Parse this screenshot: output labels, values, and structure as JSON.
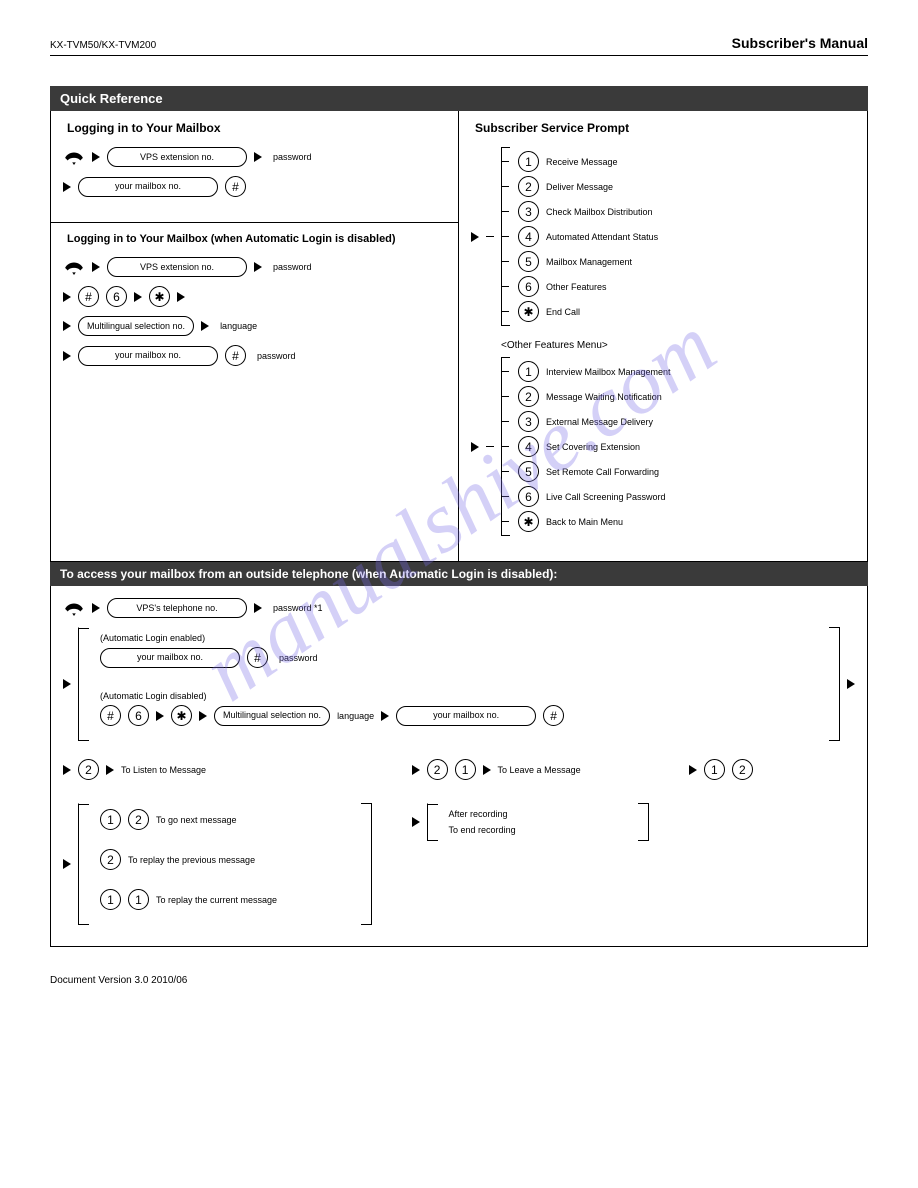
{
  "header": {
    "left": "KX-TVM50/KX-TVM200",
    "right": "Subscriber's Manual"
  },
  "watermark": "manualshive.com",
  "band1": "Quick Reference",
  "band2": "To access your mailbox from an outside telephone (when Automatic Login is disabled):",
  "footer": "Document Version  3.0  2010/06",
  "cells": {
    "c1": {
      "title": "Logging in to Your Mailbox",
      "pill_ext": "VPS extension no.",
      "pill_your": "your mailbox no.",
      "after": "password"
    },
    "c2": {
      "title": "Subscriber Service Prompt",
      "opts": [
        {
          "n": "1",
          "t": "Receive Message"
        },
        {
          "n": "2",
          "t": "Deliver Message"
        },
        {
          "n": "3",
          "t": "Check Mailbox Distribution"
        },
        {
          "n": "4",
          "t": "Automated Attendant Status"
        },
        {
          "n": "5",
          "t": "Mailbox Management"
        },
        {
          "n": "6",
          "t": "Other Features"
        },
        {
          "n": "*",
          "t": "End Call"
        }
      ],
      "opts2_title": "<Other Features Menu>",
      "opts2": [
        {
          "n": "1",
          "t": "Interview Mailbox Management"
        },
        {
          "n": "2",
          "t": "Message Waiting Notification"
        },
        {
          "n": "3",
          "t": "External Message Delivery"
        },
        {
          "n": "4",
          "t": "Set Covering Extension"
        },
        {
          "n": "5",
          "t": "Set Remote Call Forwarding"
        },
        {
          "n": "6",
          "t": "Live Call Screening Password"
        },
        {
          "n": "*",
          "t": "Back to Main Menu"
        }
      ]
    },
    "c3": {
      "title": "Logging in to Your Mailbox (when Automatic Login is disabled)",
      "pill_ext": "VPS extension no.",
      "after1": "password",
      "pill_mult": "Multilingual selection no.",
      "after2": "language",
      "pill_your": "your mailbox no.",
      "after3": "password"
    }
  },
  "band2_content": {
    "pill_tel": "VPS's telephone no.",
    "after_tel": "password *1",
    "branch_label_a": "(Automatic Login enabled)",
    "branch_a_pill": "your mailbox no.",
    "branch_a_after": "password",
    "branch_label_b": "(Automatic Login disabled)",
    "branch_b_pill1": "Multilingual selection no.",
    "branch_b_after1": "language",
    "branch_b_pill2": "your mailbox no.",
    "row2_left": "To Listen to Message",
    "row2_mid": "To Leave a Message",
    "brA_opts": [
      {
        "k": "1 2",
        "t": "To go next message"
      },
      {
        "k": "2",
        "t": "To replay the previous message"
      },
      {
        "k": "1 1",
        "t": "To replay the current message"
      }
    ],
    "brB_title": "After recording",
    "brB_text": "To end recording"
  }
}
